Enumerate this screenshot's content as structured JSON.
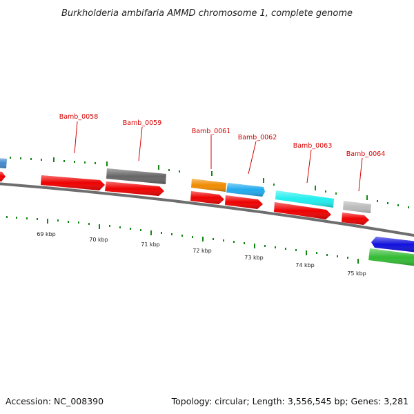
{
  "title": "Burkholderia ambifaria AMMD chromosome 1, complete genome",
  "footer": {
    "accession": "Accession: NC_008390",
    "summary": "Topology: circular; Length: 3,556,545 bp; Genes: 3,281"
  },
  "gene_labels": [
    "Bamb_0058",
    "Bamb_0059",
    "Bamb_0061",
    "Bamb_0062",
    "Bamb_0063",
    "Bamb_0064"
  ],
  "kbp_labels": [
    "69 kbp",
    "70 kbp",
    "71 kbp",
    "72 kbp",
    "73 kbp",
    "74 kbp",
    "75 kbp"
  ],
  "colors": {
    "red": "#ee0000",
    "grey_dark": "#666666",
    "orange": "#f08c00",
    "sky": "#22aaee",
    "cyan": "#22eeee",
    "grey_light": "#bbbbbb",
    "blue": "#1111dd",
    "green": "#33bb33",
    "steel": "#4488cc",
    "tick": "#118811",
    "label": "#d40000",
    "backbone": "#777777"
  }
}
